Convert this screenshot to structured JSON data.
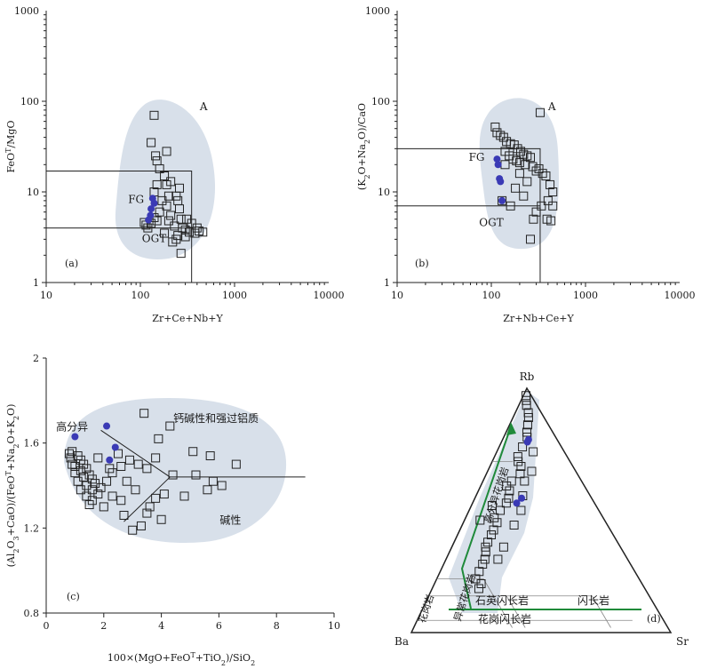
{
  "colors": {
    "blob": "#d8e0ea",
    "dot": "#3a3ab5",
    "label_red": "#e05a3a",
    "arrow_green": "#1f8a3a",
    "ink": "#222222"
  },
  "chart_data": [
    {
      "id": "a",
      "type": "scatter",
      "panel_label": "(a)",
      "xlabel": "Zr+Ce+Nb+Y",
      "ylabel_html": "FeO<tspan baseline-shift='super' font-size='8'>T</tspan>/MgO",
      "xlog": true,
      "ylog": true,
      "xlim": [
        10,
        10000
      ],
      "ylim": [
        1,
        1000
      ],
      "xticks": [
        10,
        100,
        1000,
        10000
      ],
      "yticks": [
        1,
        10,
        100,
        1000
      ],
      "field_labels": [
        {
          "text": "A",
          "x": 470,
          "y": 80
        },
        {
          "text": "FG",
          "x": 90,
          "y": 7.5
        },
        {
          "text": "OGT",
          "x": 140,
          "y": 2.8
        }
      ],
      "squares": [
        [
          140,
          70
        ],
        [
          130,
          35
        ],
        [
          190,
          28
        ],
        [
          145,
          25
        ],
        [
          150,
          22
        ],
        [
          160,
          18
        ],
        [
          180,
          15
        ],
        [
          210,
          13
        ],
        [
          150,
          12
        ],
        [
          140,
          10
        ],
        [
          200,
          9
        ],
        [
          250,
          8
        ],
        [
          190,
          7
        ],
        [
          260,
          6.5
        ],
        [
          160,
          6
        ],
        [
          210,
          5.5
        ],
        [
          270,
          5
        ],
        [
          310,
          5
        ],
        [
          350,
          4.5
        ],
        [
          400,
          4
        ],
        [
          200,
          4.8
        ],
        [
          230,
          4.2
        ],
        [
          280,
          4
        ],
        [
          300,
          3.8
        ],
        [
          330,
          3.6
        ],
        [
          380,
          3.5
        ],
        [
          420,
          3.7
        ],
        [
          460,
          3.6
        ],
        [
          250,
          3.3
        ],
        [
          180,
          3.5
        ],
        [
          150,
          4.8
        ],
        [
          130,
          4.5
        ],
        [
          115,
          4.3
        ],
        [
          120,
          4
        ],
        [
          240,
          3
        ],
        [
          220,
          2.8
        ],
        [
          270,
          2.1
        ],
        [
          300,
          3.2
        ],
        [
          190,
          12
        ],
        [
          170,
          8
        ],
        [
          240,
          9
        ],
        [
          260,
          11
        ],
        [
          140,
          5.2
        ],
        [
          110,
          4.6
        ]
      ],
      "dots": [
        [
          135,
          8.5
        ],
        [
          140,
          7.5
        ],
        [
          128,
          5.5
        ],
        [
          122,
          4.9
        ],
        [
          130,
          6.5
        ]
      ]
    },
    {
      "id": "b",
      "type": "scatter",
      "panel_label": "(b)",
      "xlabel": "Zr+Nb+Ce+Y",
      "ylabel_html": "(K<tspan baseline-shift='sub' font-size='8'>2</tspan>O+Na<tspan baseline-shift='sub' font-size='8'>2</tspan>O)/CaO",
      "xlog": true,
      "ylog": true,
      "xlim": [
        10,
        10000
      ],
      "ylim": [
        1,
        1000
      ],
      "xticks": [
        10,
        100,
        1000,
        10000
      ],
      "yticks": [
        1,
        10,
        100,
        1000
      ],
      "field_labels": [
        {
          "text": "A",
          "x": 440,
          "y": 80
        },
        {
          "text": "FG",
          "x": 70,
          "y": 22
        },
        {
          "text": "OGT",
          "x": 100,
          "y": 4.2
        }
      ],
      "squares": [
        [
          330,
          75
        ],
        [
          110,
          52
        ],
        [
          115,
          45
        ],
        [
          125,
          42
        ],
        [
          135,
          40
        ],
        [
          145,
          36
        ],
        [
          160,
          34
        ],
        [
          175,
          33
        ],
        [
          190,
          30
        ],
        [
          205,
          28
        ],
        [
          220,
          26
        ],
        [
          240,
          25
        ],
        [
          260,
          24
        ],
        [
          140,
          28
        ],
        [
          155,
          25
        ],
        [
          170,
          23
        ],
        [
          185,
          22
        ],
        [
          200,
          21
        ],
        [
          230,
          20
        ],
        [
          275,
          19
        ],
        [
          300,
          17
        ],
        [
          320,
          18
        ],
        [
          350,
          16
        ],
        [
          380,
          15
        ],
        [
          420,
          12
        ],
        [
          450,
          10
        ],
        [
          400,
          8
        ],
        [
          340,
          7
        ],
        [
          300,
          6
        ],
        [
          280,
          5
        ],
        [
          390,
          5
        ],
        [
          430,
          4.8
        ],
        [
          260,
          3
        ],
        [
          140,
          20
        ],
        [
          200,
          16
        ],
        [
          240,
          13
        ],
        [
          180,
          11
        ],
        [
          220,
          9
        ],
        [
          160,
          7
        ],
        [
          130,
          8
        ],
        [
          450,
          7
        ]
      ],
      "dots": [
        [
          115,
          23
        ],
        [
          118,
          20
        ],
        [
          122,
          14
        ],
        [
          125,
          13
        ],
        [
          130,
          8
        ]
      ]
    },
    {
      "id": "c",
      "type": "scatter",
      "panel_label": "(c)",
      "xlabel_html": "100×(MgO+FeO<tspan baseline-shift='super' font-size='8'>T</tspan>+TiO<tspan baseline-shift='sub' font-size='8'>2</tspan>)/SiO<tspan baseline-shift='sub' font-size='8'>2</tspan>",
      "ylabel_html": "(Al<tspan baseline-shift='sub' font-size='8'>2</tspan>O<tspan baseline-shift='sub' font-size='8'>3</tspan>+CaO)/(FeO<tspan baseline-shift='super' font-size='8'>T</tspan>+Na<tspan baseline-shift='sub' font-size='8'>2</tspan>O+K<tspan baseline-shift='sub' font-size='8'>2</tspan>O)",
      "xlog": false,
      "ylog": false,
      "xlim": [
        0,
        10
      ],
      "ylim": [
        0.8,
        2
      ],
      "xticks": [
        0,
        2,
        4,
        6,
        8,
        10
      ],
      "yticks": [
        0.8,
        1.2,
        1.6,
        2
      ],
      "xtick_labels": [
        "0",
        "2",
        "4",
        "6",
        "8",
        "10"
      ],
      "ytick_labels": [
        "0.8",
        "1.2",
        "1.6",
        "2"
      ],
      "field_labels": [
        {
          "text": "钙碱性和强过铝质",
          "x": 5.9,
          "y": 1.7
        },
        {
          "text": "高分异",
          "x": 0.9,
          "y": 1.66
        },
        {
          "text": "碱性",
          "x": 6.4,
          "y": 1.22
        }
      ],
      "squares": [
        [
          3.4,
          1.74
        ],
        [
          4.3,
          1.68
        ],
        [
          3.9,
          1.62
        ],
        [
          5.1,
          1.56
        ],
        [
          5.7,
          1.54
        ],
        [
          6.6,
          1.5
        ],
        [
          4.4,
          1.45
        ],
        [
          5.2,
          1.45
        ],
        [
          5.8,
          1.42
        ],
        [
          6.1,
          1.4
        ],
        [
          5.6,
          1.38
        ],
        [
          4.8,
          1.35
        ],
        [
          3.8,
          1.53
        ],
        [
          3.5,
          1.48
        ],
        [
          3.2,
          1.5
        ],
        [
          2.9,
          1.52
        ],
        [
          2.6,
          1.49
        ],
        [
          2.3,
          1.46
        ],
        [
          2.1,
          1.42
        ],
        [
          1.9,
          1.39
        ],
        [
          1.8,
          1.36
        ],
        [
          1.6,
          1.33
        ],
        [
          1.5,
          1.31
        ],
        [
          1.4,
          1.35
        ],
        [
          1.2,
          1.38
        ],
        [
          1.1,
          1.42
        ],
        [
          1.0,
          1.46
        ],
        [
          0.9,
          1.5
        ],
        [
          0.85,
          1.53
        ],
        [
          0.8,
          1.55
        ],
        [
          0.9,
          1.56
        ],
        [
          1.1,
          1.54
        ],
        [
          1.2,
          1.52
        ],
        [
          1.3,
          1.5
        ],
        [
          1.4,
          1.48
        ],
        [
          1.5,
          1.45
        ],
        [
          1.6,
          1.43
        ],
        [
          1.7,
          1.41
        ],
        [
          1.3,
          1.44
        ],
        [
          1.2,
          1.47
        ],
        [
          1.0,
          1.49
        ],
        [
          1.4,
          1.4
        ],
        [
          1.6,
          1.38
        ],
        [
          2.0,
          1.3
        ],
        [
          2.3,
          1.35
        ],
        [
          2.6,
          1.33
        ],
        [
          2.8,
          1.42
        ],
        [
          3.1,
          1.38
        ],
        [
          3.6,
          1.3
        ],
        [
          4.0,
          1.24
        ],
        [
          2.7,
          1.26
        ],
        [
          3.0,
          1.19
        ],
        [
          3.3,
          1.21
        ],
        [
          3.5,
          1.27
        ],
        [
          3.8,
          1.34
        ],
        [
          4.1,
          1.36
        ],
        [
          2.2,
          1.48
        ],
        [
          2.5,
          1.55
        ],
        [
          1.8,
          1.53
        ]
      ],
      "dots": [
        [
          1.0,
          1.63
        ],
        [
          2.1,
          1.68
        ],
        [
          2.4,
          1.58
        ],
        [
          2.2,
          1.52
        ]
      ]
    },
    {
      "id": "d",
      "type": "ternary",
      "panel_label": "(d)",
      "vertices": [
        "Rb",
        "Ba",
        "Sr"
      ],
      "field_labels": [
        "高分异花岗岩",
        "花岗岩",
        "异常花岗岩",
        "石英闪长岩",
        "花岗闪长岩",
        "闪长岩"
      ],
      "squares": [
        [
          0.97,
          0.02,
          0.01
        ],
        [
          0.95,
          0.03,
          0.02
        ],
        [
          0.93,
          0.04,
          0.03
        ],
        [
          0.9,
          0.05,
          0.05
        ],
        [
          0.88,
          0.06,
          0.06
        ],
        [
          0.85,
          0.08,
          0.07
        ],
        [
          0.82,
          0.1,
          0.08
        ],
        [
          0.8,
          0.11,
          0.09
        ],
        [
          0.76,
          0.15,
          0.09
        ],
        [
          0.72,
          0.19,
          0.09
        ],
        [
          0.7,
          0.2,
          0.1
        ],
        [
          0.68,
          0.2,
          0.12
        ],
        [
          0.65,
          0.22,
          0.13
        ],
        [
          0.62,
          0.27,
          0.11
        ],
        [
          0.6,
          0.3,
          0.1
        ],
        [
          0.58,
          0.3,
          0.12
        ],
        [
          0.55,
          0.32,
          0.13
        ],
        [
          0.53,
          0.34,
          0.13
        ],
        [
          0.5,
          0.38,
          0.12
        ],
        [
          0.47,
          0.42,
          0.11
        ],
        [
          0.45,
          0.42,
          0.13
        ],
        [
          0.42,
          0.45,
          0.13
        ],
        [
          0.4,
          0.47,
          0.13
        ],
        [
          0.37,
          0.5,
          0.13
        ],
        [
          0.35,
          0.52,
          0.13
        ],
        [
          0.33,
          0.53,
          0.14
        ],
        [
          0.3,
          0.55,
          0.15
        ],
        [
          0.28,
          0.57,
          0.15
        ],
        [
          0.25,
          0.6,
          0.15
        ],
        [
          0.22,
          0.63,
          0.15
        ],
        [
          0.2,
          0.62,
          0.18
        ],
        [
          0.18,
          0.64,
          0.18
        ],
        [
          0.44,
          0.36,
          0.2
        ],
        [
          0.5,
          0.3,
          0.2
        ],
        [
          0.56,
          0.26,
          0.18
        ],
        [
          0.62,
          0.22,
          0.16
        ],
        [
          0.66,
          0.17,
          0.17
        ],
        [
          0.74,
          0.12,
          0.14
        ],
        [
          0.46,
          0.48,
          0.06
        ],
        [
          0.52,
          0.4,
          0.08
        ],
        [
          0.35,
          0.45,
          0.2
        ],
        [
          0.3,
          0.5,
          0.2
        ]
      ],
      "dots": [
        [
          0.78,
          0.12,
          0.1
        ],
        [
          0.79,
          0.11,
          0.1
        ],
        [
          0.55,
          0.27,
          0.18
        ],
        [
          0.53,
          0.3,
          0.17
        ]
      ]
    }
  ]
}
